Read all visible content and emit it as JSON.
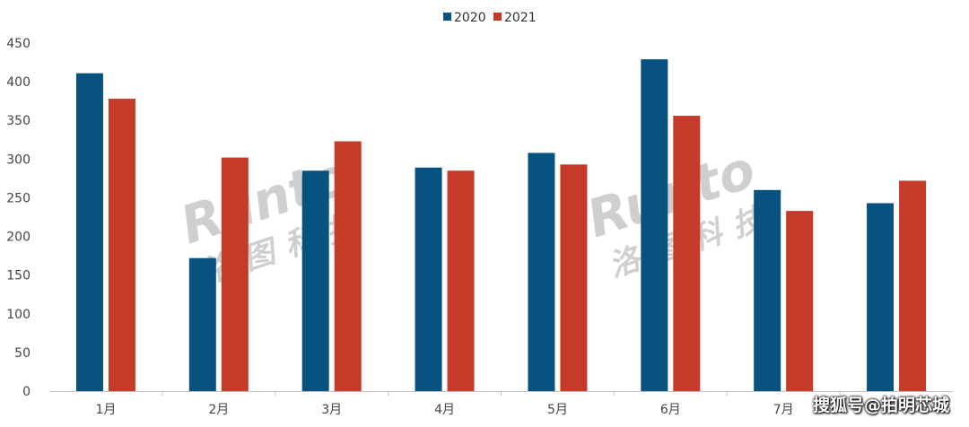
{
  "chart_data": {
    "type": "bar",
    "categories": [
      "1月",
      "2月",
      "3月",
      "4月",
      "5月",
      "6月",
      "7月",
      ""
    ],
    "series": [
      {
        "name": "2020",
        "color": "#08527f",
        "values": [
          411,
          172,
          285,
          289,
          308,
          429,
          260,
          243
        ]
      },
      {
        "name": "2021",
        "color": "#c63a2a",
        "values": [
          378,
          302,
          323,
          285,
          293,
          356,
          233,
          272
        ]
      }
    ],
    "ylim": [
      0,
      450
    ],
    "yticks": [
      0,
      50,
      100,
      150,
      200,
      250,
      300,
      350,
      400,
      450
    ],
    "grid": false,
    "legend": "top-center",
    "xlabel": "",
    "ylabel": "",
    "title": ""
  },
  "watermark": {
    "latin": "Runto",
    "chinese": "洛图科技"
  },
  "credit": "搜狐号@拍明芯城"
}
